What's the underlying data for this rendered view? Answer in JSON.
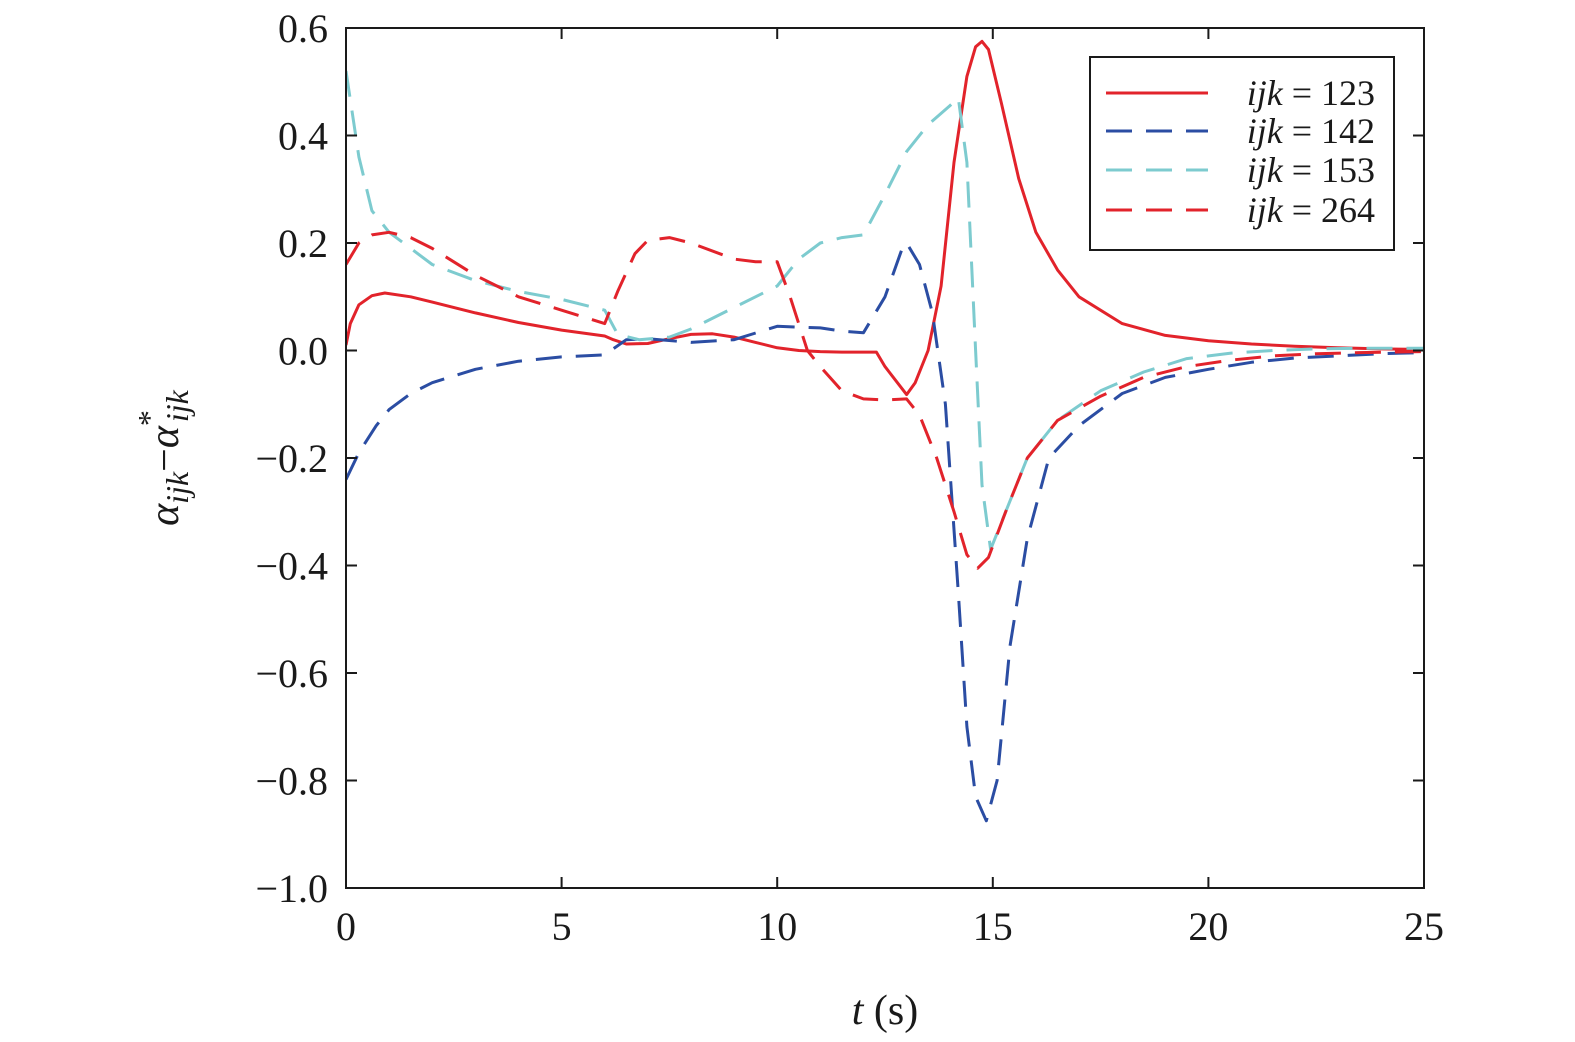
{
  "chart_data": {
    "type": "line",
    "xlabel_var": "t",
    "xlabel_unit": " (s)",
    "ylabel": {
      "base1": "α",
      "sub1": "ijk",
      "minus": "−",
      "base2": "α",
      "sup2": "*",
      "sub2": "ijk"
    },
    "xlim": [
      0,
      25
    ],
    "ylim": [
      -1.0,
      0.6
    ],
    "xticks": [
      0,
      5,
      10,
      15,
      20,
      25
    ],
    "xtick_labels": [
      "0",
      "5",
      "10",
      "15",
      "20",
      "25"
    ],
    "yticks": [
      0.6,
      0.4,
      0.2,
      0.0,
      -0.2,
      -0.4,
      -0.6,
      -0.8,
      -1.0
    ],
    "ytick_labels": [
      "0.6",
      "0.4",
      "0.2",
      "0.0",
      "−0.2",
      "−0.4",
      "−0.6",
      "−0.8",
      "−1.0"
    ],
    "grid": false,
    "legend_position": "top-right",
    "series": [
      {
        "name": "123",
        "legend_prefix": "ijk",
        "legend_eq": " = 123",
        "color": "#e2232b",
        "dash": "solid",
        "points": [
          [
            0,
            0.01
          ],
          [
            0.1,
            0.05
          ],
          [
            0.3,
            0.085
          ],
          [
            0.6,
            0.102
          ],
          [
            0.9,
            0.107
          ],
          [
            1.5,
            0.1
          ],
          [
            2,
            0.09
          ],
          [
            3,
            0.07
          ],
          [
            4,
            0.052
          ],
          [
            5,
            0.038
          ],
          [
            6,
            0.027
          ],
          [
            6.2,
            0.02
          ],
          [
            6.5,
            0.012
          ],
          [
            7,
            0.013
          ],
          [
            7.5,
            0.022
          ],
          [
            8,
            0.03
          ],
          [
            8.5,
            0.031
          ],
          [
            9,
            0.025
          ],
          [
            9.5,
            0.015
          ],
          [
            10,
            0.005
          ],
          [
            10.5,
            0.0
          ],
          [
            11,
            -0.002
          ],
          [
            11.5,
            -0.003
          ],
          [
            12,
            -0.003
          ],
          [
            12.3,
            -0.003
          ],
          [
            12.5,
            -0.03
          ],
          [
            13,
            -0.082
          ],
          [
            13.2,
            -0.06
          ],
          [
            13.5,
            0.0
          ],
          [
            13.8,
            0.12
          ],
          [
            14.1,
            0.35
          ],
          [
            14.4,
            0.51
          ],
          [
            14.6,
            0.565
          ],
          [
            14.75,
            0.575
          ],
          [
            14.9,
            0.56
          ],
          [
            15.2,
            0.46
          ],
          [
            15.6,
            0.32
          ],
          [
            16,
            0.22
          ],
          [
            16.5,
            0.15
          ],
          [
            17,
            0.1
          ],
          [
            18,
            0.05
          ],
          [
            19,
            0.028
          ],
          [
            20,
            0.018
          ],
          [
            21,
            0.012
          ],
          [
            22,
            0.008
          ],
          [
            23,
            0.005
          ],
          [
            24,
            0.003
          ],
          [
            25,
            0.002
          ]
        ]
      },
      {
        "name": "142",
        "legend_prefix": "ijk",
        "legend_eq": " = 142",
        "color": "#2b4da3",
        "dash": "dashed",
        "points": [
          [
            0,
            -0.24
          ],
          [
            0.3,
            -0.19
          ],
          [
            0.7,
            -0.14
          ],
          [
            1,
            -0.11
          ],
          [
            1.5,
            -0.08
          ],
          [
            2,
            -0.06
          ],
          [
            3,
            -0.035
          ],
          [
            4,
            -0.02
          ],
          [
            5,
            -0.012
          ],
          [
            6,
            -0.008
          ],
          [
            6.5,
            0.02
          ],
          [
            7,
            0.022
          ],
          [
            8,
            0.015
          ],
          [
            9,
            0.02
          ],
          [
            10,
            0.045
          ],
          [
            11,
            0.042
          ],
          [
            11.5,
            0.036
          ],
          [
            12,
            0.033
          ],
          [
            12.5,
            0.1
          ],
          [
            12.9,
            0.19
          ],
          [
            13,
            0.2
          ],
          [
            13.3,
            0.16
          ],
          [
            13.6,
            0.07
          ],
          [
            13.9,
            -0.1
          ],
          [
            14.2,
            -0.45
          ],
          [
            14.4,
            -0.7
          ],
          [
            14.6,
            -0.83
          ],
          [
            14.85,
            -0.875
          ],
          [
            15.1,
            -0.8
          ],
          [
            15.4,
            -0.55
          ],
          [
            15.8,
            -0.35
          ],
          [
            16.3,
            -0.2
          ],
          [
            17,
            -0.14
          ],
          [
            18,
            -0.08
          ],
          [
            19,
            -0.05
          ],
          [
            20,
            -0.035
          ],
          [
            21,
            -0.022
          ],
          [
            22,
            -0.014
          ],
          [
            23,
            -0.01
          ],
          [
            24,
            -0.006
          ],
          [
            25,
            -0.004
          ]
        ]
      },
      {
        "name": "153",
        "legend_prefix": "ijk",
        "legend_eq": " = 153",
        "color": "#7dcbcf",
        "dash": "dashed",
        "points": [
          [
            0,
            0.52
          ],
          [
            0.3,
            0.36
          ],
          [
            0.6,
            0.26
          ],
          [
            1,
            0.22
          ],
          [
            1.5,
            0.19
          ],
          [
            2,
            0.16
          ],
          [
            3,
            0.13
          ],
          [
            4,
            0.11
          ],
          [
            5,
            0.095
          ],
          [
            6,
            0.075
          ],
          [
            6.3,
            0.03
          ],
          [
            6.8,
            0.02
          ],
          [
            7.5,
            0.025
          ],
          [
            8,
            0.04
          ],
          [
            9,
            0.08
          ],
          [
            10,
            0.12
          ],
          [
            10.5,
            0.17
          ],
          [
            11,
            0.2
          ],
          [
            11.5,
            0.21
          ],
          [
            12,
            0.215
          ],
          [
            12.5,
            0.29
          ],
          [
            13,
            0.37
          ],
          [
            13.5,
            0.42
          ],
          [
            14,
            0.455
          ],
          [
            14.2,
            0.47
          ],
          [
            14.4,
            0.35
          ],
          [
            14.6,
            0.0
          ],
          [
            14.75,
            -0.25
          ],
          [
            14.95,
            -0.37
          ],
          [
            15.3,
            -0.3
          ],
          [
            15.8,
            -0.2
          ],
          [
            16.5,
            -0.13
          ],
          [
            17.5,
            -0.075
          ],
          [
            18.5,
            -0.04
          ],
          [
            19.5,
            -0.015
          ],
          [
            20.5,
            -0.005
          ],
          [
            21.5,
            0.0
          ],
          [
            22.5,
            0.003
          ],
          [
            23.5,
            0.004
          ],
          [
            25,
            0.004
          ]
        ]
      },
      {
        "name": "264",
        "legend_prefix": "ijk",
        "legend_eq": " = 264",
        "color": "#e2232b",
        "dash": "dashed",
        "points": [
          [
            0,
            0.16
          ],
          [
            0.3,
            0.2
          ],
          [
            0.6,
            0.215
          ],
          [
            1,
            0.22
          ],
          [
            1.5,
            0.21
          ],
          [
            2,
            0.19
          ],
          [
            3,
            0.14
          ],
          [
            4,
            0.1
          ],
          [
            5,
            0.075
          ],
          [
            6,
            0.05
          ],
          [
            6.3,
            0.11
          ],
          [
            6.7,
            0.18
          ],
          [
            7,
            0.205
          ],
          [
            7.5,
            0.21
          ],
          [
            8,
            0.2
          ],
          [
            9,
            0.17
          ],
          [
            9.5,
            0.165
          ],
          [
            10,
            0.165
          ],
          [
            10.3,
            0.1
          ],
          [
            10.7,
            0.0
          ],
          [
            11,
            -0.03
          ],
          [
            11.5,
            -0.075
          ],
          [
            12,
            -0.09
          ],
          [
            12.5,
            -0.092
          ],
          [
            13,
            -0.09
          ],
          [
            13.3,
            -0.12
          ],
          [
            13.7,
            -0.2
          ],
          [
            14.1,
            -0.3
          ],
          [
            14.4,
            -0.38
          ],
          [
            14.65,
            -0.405
          ],
          [
            14.9,
            -0.385
          ],
          [
            15.3,
            -0.3
          ],
          [
            15.8,
            -0.2
          ],
          [
            16.5,
            -0.13
          ],
          [
            17.5,
            -0.085
          ],
          [
            18.5,
            -0.05
          ],
          [
            19.5,
            -0.03
          ],
          [
            20.5,
            -0.018
          ],
          [
            21.5,
            -0.01
          ],
          [
            22.5,
            -0.006
          ],
          [
            23.5,
            -0.004
          ],
          [
            25,
            -0.002
          ]
        ]
      }
    ]
  }
}
